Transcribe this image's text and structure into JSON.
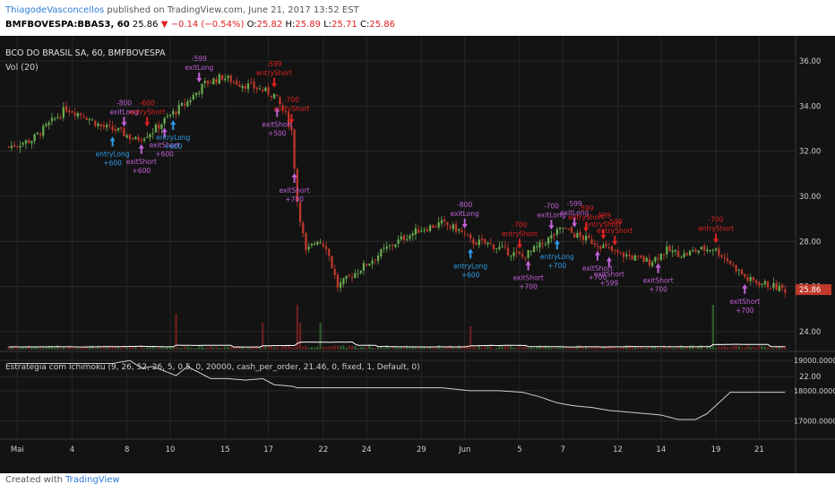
{
  "header": {
    "user": "ThiagodeVasconcellos",
    "published": "published on TradingView.com, June 21, 2017 13:52 EST",
    "symbol": "BMFBOVESPA:BBAS3, 60",
    "price": "25.86",
    "change": "▼ −0.14 (−0.54%)",
    "o_label": "O:",
    "o": "25.82",
    "h_label": "H:",
    "h": "25.89",
    "l_label": "L:",
    "l": "25.71",
    "c_label": "C:",
    "c": "25.86"
  },
  "footer": {
    "created": "Created with",
    "brand": "TradingView"
  },
  "colors": {
    "up": "#6aaa4f",
    "down": "#c0392b",
    "long": "#2e9be8",
    "exit": "#c061d8",
    "short": "#e02020",
    "equity": "#cfcfcf"
  },
  "chart_data": {
    "type": "candlestick",
    "title": "BCO DO BRASIL SA, 60, BMFBOVESPA",
    "volume_label": "Vol (20)",
    "strategy_label": "Estratégia com Ichimoku (9, 26, 52, 26, 5, 0.5, 0, 20000, cash_per_order, 21.46, 0, fixed, 1, Default, 0)",
    "x_ticks": [
      "Mai",
      "4",
      "8",
      "10",
      "15",
      "17",
      "22",
      "24",
      "29",
      "Jun",
      "5",
      "7",
      "12",
      "14",
      "19",
      "21"
    ],
    "x_tick_index": [
      3,
      22,
      41,
      56,
      75,
      90,
      109,
      124,
      143,
      158,
      177,
      192,
      211,
      226,
      245,
      260
    ],
    "bar_count": 270,
    "price_axis": {
      "ylim": [
        23.2,
        36.8
      ],
      "ticks": [
        "36.00",
        "34.00",
        "32.00",
        "30.00",
        "28.00",
        "26.00",
        "24.00",
        "22.00"
      ]
    },
    "equity_axis": {
      "ylim": [
        16400,
        19300
      ],
      "ticks": [
        "19000.0000",
        "18000.0000",
        "17000.0000"
      ]
    },
    "price_keypoints": [
      [
        0,
        32.2
      ],
      [
        8,
        32.5
      ],
      [
        14,
        33.2
      ],
      [
        20,
        33.9
      ],
      [
        26,
        33.6
      ],
      [
        32,
        33.1
      ],
      [
        38,
        32.9
      ],
      [
        44,
        32.5
      ],
      [
        50,
        32.9
      ],
      [
        56,
        33.6
      ],
      [
        62,
        34.2
      ],
      [
        68,
        35.0
      ],
      [
        74,
        35.3
      ],
      [
        80,
        35.0
      ],
      [
        86,
        34.8
      ],
      [
        92,
        34.5
      ],
      [
        96,
        33.6
      ],
      [
        98,
        32.9
      ],
      [
        100,
        29.8
      ],
      [
        103,
        27.5
      ],
      [
        107,
        28.1
      ],
      [
        110,
        27.8
      ],
      [
        114,
        26.0
      ],
      [
        118,
        26.4
      ],
      [
        124,
        27.0
      ],
      [
        130,
        27.6
      ],
      [
        136,
        28.1
      ],
      [
        142,
        28.5
      ],
      [
        150,
        28.8
      ],
      [
        156,
        28.5
      ],
      [
        160,
        28.0
      ],
      [
        166,
        27.9
      ],
      [
        172,
        27.6
      ],
      [
        178,
        27.3
      ],
      [
        184,
        27.8
      ],
      [
        188,
        28.2
      ],
      [
        192,
        28.6
      ],
      [
        196,
        28.3
      ],
      [
        200,
        28.1
      ],
      [
        204,
        27.9
      ],
      [
        210,
        27.5
      ],
      [
        216,
        27.3
      ],
      [
        222,
        27.1
      ],
      [
        228,
        27.6
      ],
      [
        234,
        27.4
      ],
      [
        238,
        27.6
      ],
      [
        244,
        27.7
      ],
      [
        248,
        27.3
      ],
      [
        252,
        26.8
      ],
      [
        256,
        26.3
      ],
      [
        262,
        26.1
      ],
      [
        269,
        25.86
      ]
    ],
    "volume_spikes": [
      [
        58,
        4
      ],
      [
        88,
        3
      ],
      [
        100,
        5
      ],
      [
        101,
        3
      ],
      [
        108,
        3
      ],
      [
        160,
        2.6
      ],
      [
        244,
        5
      ]
    ],
    "equity_keypoints": [
      [
        0,
        18900
      ],
      [
        36,
        18900
      ],
      [
        42,
        19000
      ],
      [
        46,
        18750
      ],
      [
        50,
        18800
      ],
      [
        54,
        18650
      ],
      [
        58,
        18500
      ],
      [
        62,
        18800
      ],
      [
        70,
        18400
      ],
      [
        76,
        18400
      ],
      [
        82,
        18350
      ],
      [
        88,
        18400
      ],
      [
        92,
        18200
      ],
      [
        98,
        18150
      ],
      [
        100,
        18100
      ],
      [
        150,
        18100
      ],
      [
        160,
        18000
      ],
      [
        170,
        18000
      ],
      [
        178,
        17950
      ],
      [
        184,
        17800
      ],
      [
        190,
        17600
      ],
      [
        196,
        17500
      ],
      [
        202,
        17450
      ],
      [
        208,
        17350
      ],
      [
        214,
        17300
      ],
      [
        220,
        17250
      ],
      [
        226,
        17200
      ],
      [
        232,
        17050
      ],
      [
        238,
        17050
      ],
      [
        242,
        17250
      ],
      [
        246,
        17600
      ],
      [
        250,
        17950
      ],
      [
        262,
        17950
      ],
      [
        269,
        17950
      ]
    ],
    "trades": [
      {
        "bar": 36,
        "kind": "long",
        "label": "entryLong",
        "qty": "+600"
      },
      {
        "bar": 40,
        "kind": "exit",
        "label": "exitLong",
        "qty": "-800"
      },
      {
        "bar": 46,
        "kind": "exit",
        "label": "exitShort",
        "qty": "+600"
      },
      {
        "bar": 48,
        "kind": "short",
        "label": "entryShort",
        "qty": "-600"
      },
      {
        "bar": 54,
        "kind": "exit",
        "label": "exitShort",
        "qty": "+600"
      },
      {
        "bar": 57,
        "kind": "long",
        "label": "entryLong",
        "qty": "+600"
      },
      {
        "bar": 66,
        "kind": "exit",
        "label": "exitLong",
        "qty": "-599"
      },
      {
        "bar": 92,
        "kind": "short",
        "label": "entryShort",
        "qty": "-599"
      },
      {
        "bar": 93,
        "kind": "exit",
        "label": "exitShort",
        "qty": "+500"
      },
      {
        "bar": 98,
        "kind": "short",
        "label": "entryShort",
        "qty": "-700"
      },
      {
        "bar": 99,
        "kind": "exit",
        "label": "exitShort",
        "qty": "+700"
      },
      {
        "bar": 158,
        "kind": "exit",
        "label": "exitLong",
        "qty": "-800"
      },
      {
        "bar": 160,
        "kind": "long",
        "label": "entryLong",
        "qty": "+600"
      },
      {
        "bar": 177,
        "kind": "short",
        "label": "entryShort",
        "qty": "-700"
      },
      {
        "bar": 180,
        "kind": "exit",
        "label": "exitShort",
        "qty": "+700"
      },
      {
        "bar": 188,
        "kind": "exit",
        "label": "exitLong",
        "qty": "-700"
      },
      {
        "bar": 190,
        "kind": "long",
        "label": "entryLong",
        "qty": "+700"
      },
      {
        "bar": 196,
        "kind": "exit",
        "label": "exitLong",
        "qty": "-599"
      },
      {
        "bar": 200,
        "kind": "short",
        "label": "entryShort",
        "qty": "-599"
      },
      {
        "bar": 204,
        "kind": "exit",
        "label": "exitShort",
        "qty": "+700"
      },
      {
        "bar": 206,
        "kind": "short",
        "label": "entryShort",
        "qty": "-599"
      },
      {
        "bar": 208,
        "kind": "exit",
        "label": "exitShort",
        "qty": "+599"
      },
      {
        "bar": 210,
        "kind": "short",
        "label": "entryShort",
        "qty": "-599"
      },
      {
        "bar": 225,
        "kind": "exit",
        "label": "exitShort",
        "qty": "+700"
      },
      {
        "bar": 245,
        "kind": "short",
        "label": "entryShort",
        "qty": "-700"
      },
      {
        "bar": 255,
        "kind": "exit",
        "label": "exitShort",
        "qty": "+700"
      }
    ]
  }
}
